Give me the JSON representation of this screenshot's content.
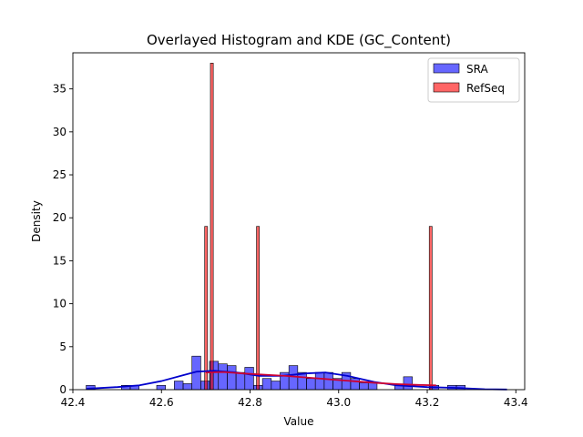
{
  "chart_data": {
    "type": "histogram",
    "title": "Overlayed Histogram and KDE (GC_Content)",
    "xlabel": "Value",
    "ylabel": "Density",
    "xlim": [
      42.4,
      43.42
    ],
    "ylim": [
      0,
      39.2
    ],
    "xticks": [
      42.4,
      42.6,
      42.8,
      43.0,
      43.2,
      43.4
    ],
    "xtick_labels": [
      "42.4",
      "42.6",
      "42.8",
      "43.0",
      "43.2",
      "43.4"
    ],
    "yticks": [
      0,
      5,
      10,
      15,
      20,
      25,
      30,
      35
    ],
    "ytick_labels": [
      "0",
      "5",
      "10",
      "15",
      "20",
      "25",
      "30",
      "35"
    ],
    "grid": false,
    "legend_position": "top-right",
    "series": [
      {
        "name": "SRA",
        "color": "#0000ff",
        "bin_start": 42.43,
        "bin_width": 0.0199,
        "values": [
          0.5,
          0,
          0,
          0,
          0.5,
          0.5,
          0,
          0,
          0.5,
          0,
          1.0,
          0.7,
          3.9,
          1.0,
          3.3,
          3.0,
          2.8,
          2.0,
          2.6,
          0.5,
          1.3,
          1.0,
          2.0,
          2.8,
          2.0,
          1.3,
          2.0,
          2.0,
          1.3,
          2.0,
          1.3,
          0.8,
          0.8,
          0,
          0,
          0.5,
          1.5,
          0,
          0,
          0.5,
          0,
          0.5,
          0.5,
          0,
          0,
          0,
          0,
          0
        ]
      },
      {
        "name": "RefSeq",
        "color": "#ff0000",
        "bin_start": 42.6975,
        "bin_width": 0.0065,
        "values": [
          19,
          0,
          38,
          0,
          0,
          0,
          0,
          0,
          0,
          0,
          0,
          0,
          0,
          0,
          0,
          0,
          0,
          0,
          19,
          0,
          0,
          0,
          0,
          0,
          0,
          0,
          0,
          0,
          0,
          0,
          0,
          0,
          0,
          0,
          0,
          0,
          0,
          0,
          0,
          0,
          0,
          0,
          0,
          0,
          0,
          0,
          0,
          0,
          0,
          0,
          0,
          0,
          0,
          0,
          0,
          0,
          0,
          0,
          0,
          0,
          0,
          0,
          0,
          0,
          0,
          0,
          0,
          0,
          0,
          0,
          0,
          0,
          0,
          0,
          0,
          0,
          0,
          0,
          19
        ]
      }
    ],
    "kde": [
      {
        "name": "SRA",
        "color": "#0000cc",
        "points": [
          [
            42.43,
            0.1
          ],
          [
            42.5,
            0.3
          ],
          [
            42.55,
            0.5
          ],
          [
            42.6,
            1.0
          ],
          [
            42.65,
            1.7
          ],
          [
            42.68,
            2.1
          ],
          [
            42.72,
            2.2
          ],
          [
            42.77,
            2.0
          ],
          [
            42.82,
            1.6
          ],
          [
            42.87,
            1.6
          ],
          [
            42.93,
            1.9
          ],
          [
            42.97,
            2.0
          ],
          [
            43.02,
            1.6
          ],
          [
            43.08,
            0.9
          ],
          [
            43.13,
            0.5
          ],
          [
            43.2,
            0.3
          ],
          [
            43.27,
            0.2
          ],
          [
            43.33,
            0.05
          ],
          [
            43.38,
            0.02
          ]
        ]
      },
      {
        "name": "RefSeq",
        "color": "#cc0033",
        "points": [
          [
            42.7,
            2.0
          ],
          [
            42.74,
            2.05
          ],
          [
            42.78,
            1.9
          ],
          [
            42.83,
            1.75
          ],
          [
            42.88,
            1.6
          ],
          [
            42.93,
            1.4
          ],
          [
            42.98,
            1.2
          ],
          [
            43.03,
            1.0
          ],
          [
            43.08,
            0.8
          ],
          [
            43.13,
            0.65
          ],
          [
            43.18,
            0.55
          ],
          [
            43.22,
            0.5
          ]
        ]
      }
    ]
  }
}
